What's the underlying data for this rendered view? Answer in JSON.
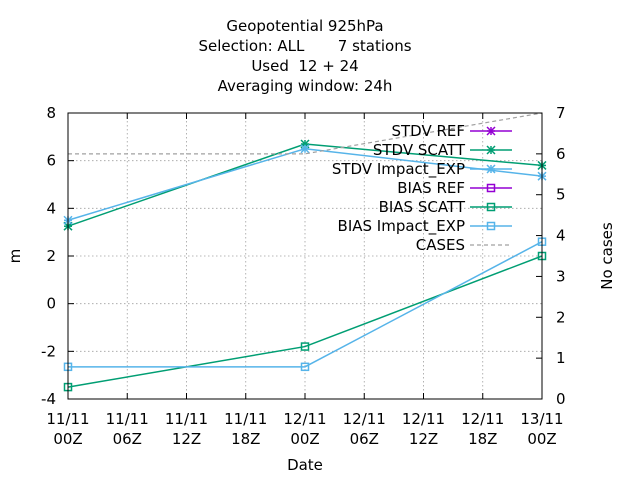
{
  "chart_data": {
    "type": "line",
    "title_lines": [
      "Geopotential 925hPa",
      "Selection: ALL       7 stations",
      "Used  12 + 24",
      "Averaging window: 24h"
    ],
    "xlabel": "Date",
    "ylabel": "m",
    "y2label": "No cases",
    "xticks": [
      {
        "x": 0,
        "line1": "11/11",
        "line2": "00Z"
      },
      {
        "x": 6,
        "line1": "11/11",
        "line2": "06Z"
      },
      {
        "x": 12,
        "line1": "11/11",
        "line2": "12Z"
      },
      {
        "x": 18,
        "line1": "11/11",
        "line2": "18Z"
      },
      {
        "x": 24,
        "line1": "12/11",
        "line2": "00Z"
      },
      {
        "x": 30,
        "line1": "12/11",
        "line2": "06Z"
      },
      {
        "x": 36,
        "line1": "12/11",
        "line2": "12Z"
      },
      {
        "x": 42,
        "line1": "12/11",
        "line2": "18Z"
      },
      {
        "x": 48,
        "line1": "13/11",
        "line2": "00Z"
      }
    ],
    "xlim": [
      0,
      48
    ],
    "ylim": [
      -4,
      8
    ],
    "y2lim": [
      0,
      7
    ],
    "yticks": [
      "-4",
      "-2",
      "0",
      "2",
      "4",
      "6",
      "8"
    ],
    "y2ticks": [
      "0",
      "1",
      "2",
      "3",
      "4",
      "5",
      "6",
      "7"
    ],
    "grid": true,
    "legend_position": "top-right",
    "series": [
      {
        "name": "STDV REF",
        "axis": "y",
        "color": "#9400d3",
        "marker": "star",
        "dash": false,
        "x": [],
        "y": []
      },
      {
        "name": "STDV SCATT",
        "axis": "y",
        "color": "#009e73",
        "marker": "star",
        "dash": false,
        "x": [
          0,
          24,
          48
        ],
        "y": [
          3.25,
          6.7,
          5.8
        ]
      },
      {
        "name": "STDV Impact_EXP",
        "axis": "y",
        "color": "#56b4e9",
        "marker": "star",
        "dash": false,
        "x": [
          0,
          24,
          48
        ],
        "y": [
          3.5,
          6.5,
          5.35
        ]
      },
      {
        "name": "BIAS REF",
        "axis": "y",
        "color": "#9400d3",
        "marker": "square",
        "dash": false,
        "x": [],
        "y": []
      },
      {
        "name": "BIAS SCATT",
        "axis": "y",
        "color": "#009e73",
        "marker": "square",
        "dash": false,
        "x": [
          0,
          24,
          48
        ],
        "y": [
          -3.5,
          -1.8,
          2.0
        ]
      },
      {
        "name": "BIAS Impact_EXP",
        "axis": "y",
        "color": "#56b4e9",
        "marker": "square",
        "dash": false,
        "x": [
          0,
          24,
          48
        ],
        "y": [
          -2.65,
          -2.65,
          2.6
        ]
      },
      {
        "name": "CASES",
        "axis": "y2",
        "color": "#a0a0a0",
        "marker": "none",
        "dash": true,
        "x": [
          0,
          24,
          48
        ],
        "y": [
          6,
          6,
          7
        ]
      }
    ]
  }
}
